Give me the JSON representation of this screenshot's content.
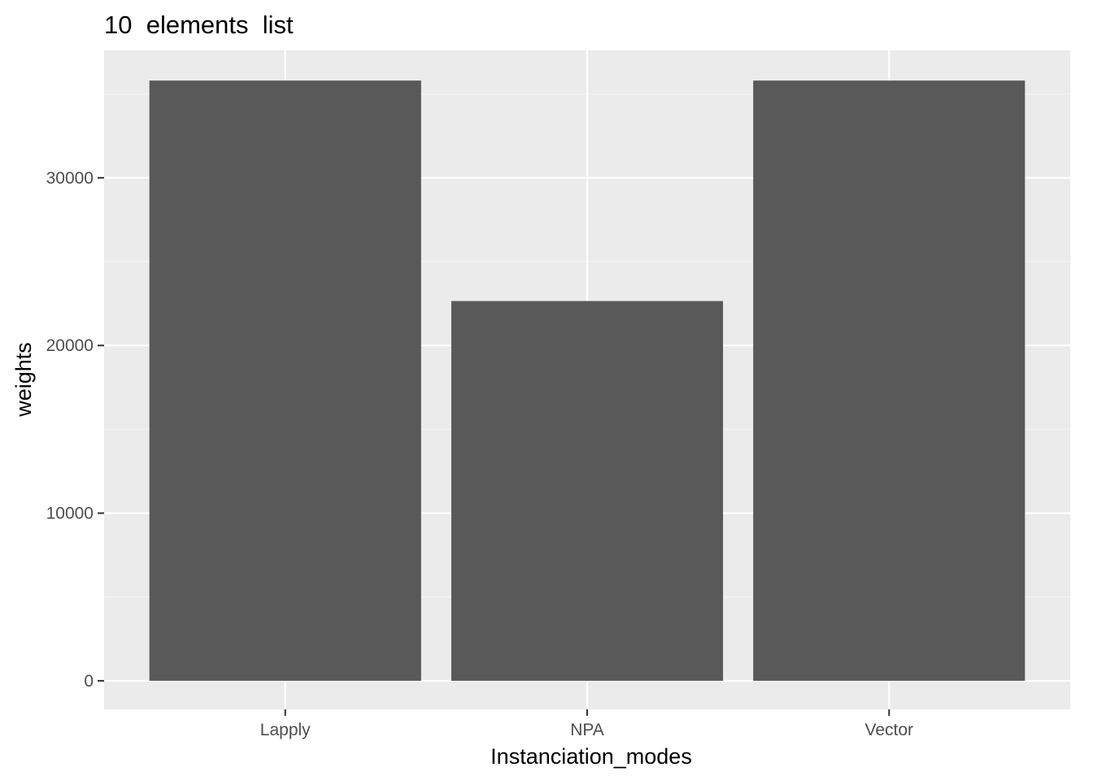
{
  "chart_data": {
    "type": "bar",
    "title": "10  elements  list",
    "xlabel": "Instanciation_modes",
    "ylabel": "weights",
    "categories": [
      "Lapply",
      "NPA",
      "Vector"
    ],
    "values": [
      35800,
      22650,
      35800
    ],
    "ylim": [
      -1700,
      37600
    ],
    "yticks": [
      0,
      10000,
      20000,
      30000
    ],
    "ytick_labels": [
      "0",
      "10000",
      "20000",
      "30000"
    ],
    "grid": true,
    "colors": {
      "panel_background": "#ebebeb",
      "grid_major": "#ffffff",
      "grid_minor": "#f5f5f5",
      "bar_fill": "#595959",
      "tick_mark": "#333333",
      "tick_label": "#4d4d4d"
    }
  }
}
